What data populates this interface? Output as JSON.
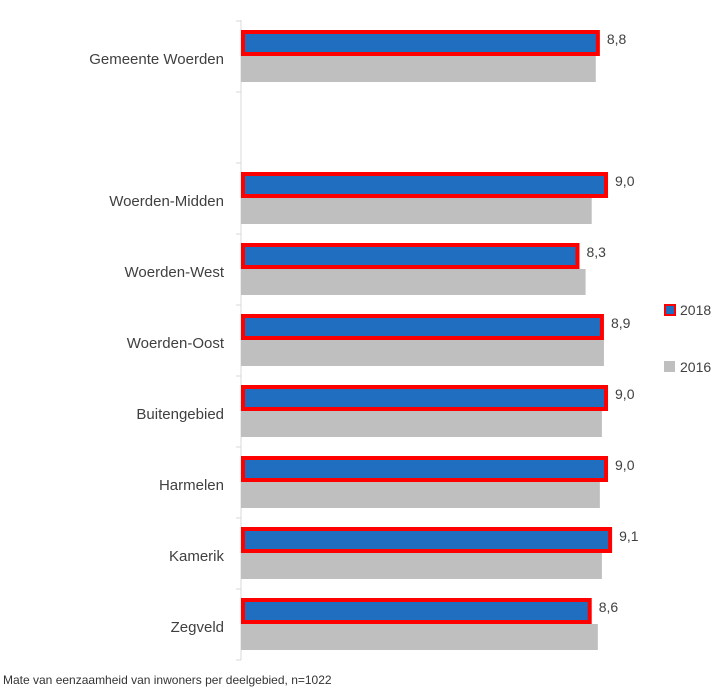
{
  "chart_data": {
    "type": "bar",
    "orientation": "horizontal",
    "categories": [
      "Gemeente Woerden",
      "",
      "Woerden-Midden",
      "Woerden-West",
      "Woerden-Oost",
      "Buitengebied",
      "Harmelen",
      "Kamerik",
      "Zegveld"
    ],
    "series": [
      {
        "name": "2018",
        "values": [
          8.8,
          null,
          9.0,
          8.3,
          8.9,
          9.0,
          9.0,
          9.1,
          8.6
        ],
        "fill": "#1F6EBF",
        "border": "#FF0000"
      },
      {
        "name": "2016",
        "values": [
          8.7,
          null,
          8.6,
          8.45,
          8.9,
          8.85,
          8.8,
          8.85,
          8.75
        ],
        "fill": "#BFBFBF"
      }
    ],
    "data_labels": [
      "8,8",
      "",
      "9,0",
      "8,3",
      "8,9",
      "9,0",
      "9,0",
      "9,1",
      "8,6"
    ],
    "xlim": [
      0,
      10
    ],
    "legend": {
      "position": "right",
      "entries": [
        "2018",
        "2016"
      ]
    },
    "grid": false
  },
  "footnote": "Mate van eenzaamheid van inwoners per deelgebied, n=1022",
  "colors": {
    "series_2018": "#1F6EBF",
    "series_2018_border": "#FF0000",
    "series_2016": "#BFBFBF",
    "axis": "#D9D9D9",
    "text": "#404040"
  }
}
